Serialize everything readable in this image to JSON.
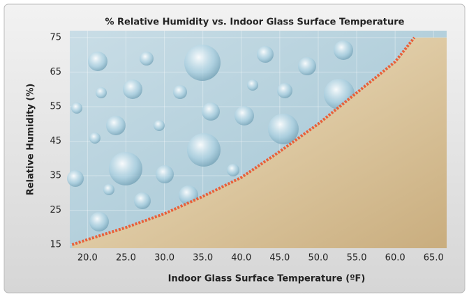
{
  "chart_data": {
    "type": "line",
    "title": "% Relative Humidity vs. Indoor Glass Surface Temperature",
    "x_label": "Indoor Glass Surface Temperature (ºF)",
    "y_label": "Relative Humidity (%)",
    "x": [
      18,
      20,
      25,
      30,
      35,
      40,
      45,
      50,
      55,
      60,
      62.5
    ],
    "values": [
      15,
      16.5,
      20,
      24,
      29,
      34.5,
      42,
      50,
      59,
      68,
      75
    ],
    "color": "#e8603a",
    "xlim": [
      17.7,
      66.7
    ],
    "ylim": [
      14,
      77
    ],
    "xticks": [
      {
        "value": 20,
        "label": "20.0"
      },
      {
        "value": 25,
        "label": "25.0"
      },
      {
        "value": 30,
        "label": "30.0"
      },
      {
        "value": 35,
        "label": "35.0"
      },
      {
        "value": 40,
        "label": "40.0"
      },
      {
        "value": 45,
        "label": "45.0"
      },
      {
        "value": 50,
        "label": "50.0"
      },
      {
        "value": 55,
        "label": "55.0"
      },
      {
        "value": 60,
        "label": "60.0"
      },
      {
        "value": 65,
        "label": "65.0"
      }
    ],
    "yticks": [
      15,
      25,
      35,
      45,
      55,
      65,
      75
    ],
    "grid": true
  }
}
